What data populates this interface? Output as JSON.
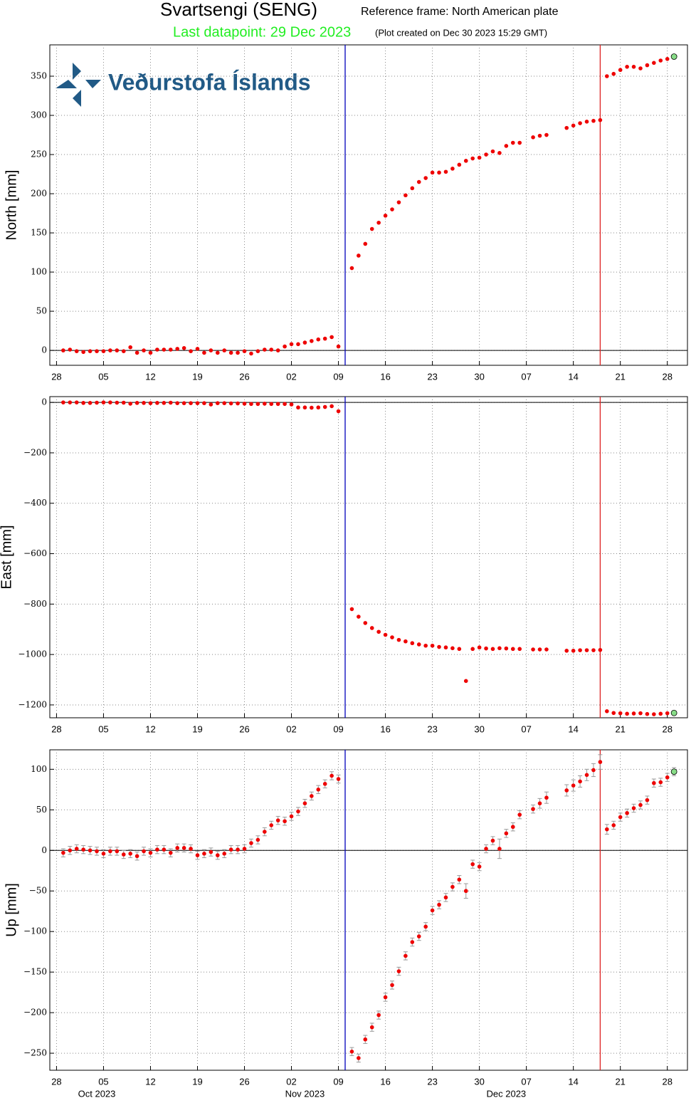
{
  "header": {
    "title": "Svartsengi (SENG)",
    "reference": "Reference frame: North American plate",
    "last_datapoint": "Last datapoint: 29 Dec 2023",
    "created": "(Plot created on Dec 30 2023 15:29 GMT)"
  },
  "logo": "Veðurstofa Íslands",
  "chart_data": {
    "type": "scatter",
    "grid": true,
    "color": "#ee0000",
    "last_color": "#88dd88",
    "error_color": "#999999",
    "xlim": [
      "2023-09-27",
      "2023-12-31"
    ],
    "xticks": [
      {
        "value": "2023-09-28",
        "label": "28"
      },
      {
        "value": "2023-10-05",
        "label": "05"
      },
      {
        "value": "2023-10-12",
        "label": "12"
      },
      {
        "value": "2023-10-19",
        "label": "19"
      },
      {
        "value": "2023-10-26",
        "label": "26"
      },
      {
        "value": "2023-11-02",
        "label": "02"
      },
      {
        "value": "2023-11-09",
        "label": "09"
      },
      {
        "value": "2023-11-16",
        "label": "16"
      },
      {
        "value": "2023-11-23",
        "label": "23"
      },
      {
        "value": "2023-11-30",
        "label": "30"
      },
      {
        "value": "2023-12-07",
        "label": "07"
      },
      {
        "value": "2023-12-14",
        "label": "14"
      },
      {
        "value": "2023-12-21",
        "label": "21"
      },
      {
        "value": "2023-12-28",
        "label": "28"
      }
    ],
    "month_labels": [
      {
        "value": "2023-10-04",
        "label": "Oct 2023"
      },
      {
        "value": "2023-11-04",
        "label": "Nov 2023"
      },
      {
        "value": "2023-12-04",
        "label": "Dec 2023"
      }
    ],
    "events": [
      {
        "x": "2023-11-10",
        "color": "#0000bb"
      },
      {
        "x": "2023-12-18",
        "color": "#dd2222"
      }
    ],
    "x": [
      "2023-09-29",
      "2023-09-30",
      "2023-10-01",
      "2023-10-02",
      "2023-10-03",
      "2023-10-04",
      "2023-10-05",
      "2023-10-06",
      "2023-10-07",
      "2023-10-08",
      "2023-10-09",
      "2023-10-10",
      "2023-10-11",
      "2023-10-12",
      "2023-10-13",
      "2023-10-14",
      "2023-10-15",
      "2023-10-16",
      "2023-10-17",
      "2023-10-18",
      "2023-10-19",
      "2023-10-20",
      "2023-10-21",
      "2023-10-22",
      "2023-10-23",
      "2023-10-24",
      "2023-10-25",
      "2023-10-26",
      "2023-10-27",
      "2023-10-28",
      "2023-10-29",
      "2023-10-30",
      "2023-10-31",
      "2023-11-01",
      "2023-11-02",
      "2023-11-03",
      "2023-11-04",
      "2023-11-05",
      "2023-11-06",
      "2023-11-07",
      "2023-11-08",
      "2023-11-09",
      "2023-11-10",
      "2023-11-11",
      "2023-11-12",
      "2023-11-13",
      "2023-11-14",
      "2023-11-15",
      "2023-11-16",
      "2023-11-17",
      "2023-11-18",
      "2023-11-19",
      "2023-11-20",
      "2023-11-21",
      "2023-11-22",
      "2023-11-23",
      "2023-11-24",
      "2023-11-25",
      "2023-11-26",
      "2023-11-27",
      "2023-11-28",
      "2023-11-29",
      "2023-11-30",
      "2023-12-01",
      "2023-12-02",
      "2023-12-03",
      "2023-12-04",
      "2023-12-05",
      "2023-12-06",
      "2023-12-07",
      "2023-12-08",
      "2023-12-09",
      "2023-12-10",
      "2023-12-11",
      "2023-12-12",
      "2023-12-13",
      "2023-12-14",
      "2023-12-15",
      "2023-12-16",
      "2023-12-17",
      "2023-12-18",
      "2023-12-19",
      "2023-12-20",
      "2023-12-21",
      "2023-12-22",
      "2023-12-23",
      "2023-12-24",
      "2023-12-25",
      "2023-12-26",
      "2023-12-27",
      "2023-12-28",
      "2023-12-29"
    ],
    "panels": [
      {
        "ylabel": "North [mm]",
        "ylim": [
          -19,
          390
        ],
        "yticks": [
          0,
          50,
          100,
          150,
          200,
          250,
          300,
          350
        ],
        "values": [
          0,
          1,
          -1,
          -2,
          -1,
          -1,
          -1,
          0,
          0,
          -1,
          4,
          -3,
          0,
          -3,
          1,
          1,
          1,
          2,
          3,
          -1,
          2,
          -3,
          0,
          -3,
          0,
          -3,
          -3,
          -1,
          -4,
          -1,
          1,
          1,
          0,
          5,
          8,
          8,
          10,
          12,
          14,
          15,
          17,
          5,
          null,
          105,
          121,
          136,
          155,
          163,
          172,
          180,
          189,
          198,
          207,
          215,
          220,
          227,
          227,
          228,
          232,
          237,
          242,
          245,
          246,
          250,
          254,
          252,
          261,
          265,
          265,
          null,
          272,
          274,
          275,
          null,
          null,
          284,
          287,
          290,
          292,
          293,
          294,
          350,
          353,
          358,
          362,
          362,
          360,
          364,
          367,
          370,
          372,
          375
        ]
      },
      {
        "ylabel": "East [mm]",
        "ylim": [
          -1251,
          23
        ],
        "yticks": [
          0,
          {
            "value": -200,
            "label": "−200"
          },
          {
            "value": -400,
            "label": "−400"
          },
          {
            "value": -600,
            "label": "−600"
          },
          {
            "value": -800,
            "label": "−800"
          },
          {
            "value": -1000,
            "label": "−1000"
          },
          {
            "value": -1200,
            "label": "−1200"
          }
        ],
        "values": [
          0,
          0,
          0,
          -2,
          -2,
          -1,
          0,
          0,
          -1,
          -1,
          -5,
          -2,
          -2,
          -3,
          -2,
          -2,
          -1,
          -3,
          -3,
          -3,
          -3,
          -3,
          -8,
          -3,
          -3,
          -4,
          -4,
          -5,
          -6,
          -6,
          -5,
          -6,
          -6,
          -6,
          -8,
          -20,
          -20,
          -21,
          -20,
          -18,
          -15,
          -35,
          null,
          -820,
          -850,
          -875,
          -895,
          -910,
          -922,
          -932,
          -942,
          -948,
          -955,
          -960,
          -965,
          -965,
          -970,
          -972,
          -975,
          -978,
          -1105,
          -978,
          -972,
          -976,
          -978,
          -975,
          -976,
          -978,
          -978,
          null,
          -980,
          -980,
          -980,
          null,
          null,
          -985,
          -985,
          -983,
          -983,
          -983,
          -982,
          -1225,
          -1232,
          -1233,
          -1235,
          -1234,
          -1233,
          -1236,
          -1237,
          -1235,
          -1233,
          -1232
        ]
      },
      {
        "ylabel": "Up [mm]",
        "ylim": [
          -271,
          124
        ],
        "yticks": [
          {
            "value": -250,
            "label": "−250"
          },
          {
            "value": -200,
            "label": "−200"
          },
          {
            "value": -150,
            "label": "−150"
          },
          {
            "value": -100,
            "label": "−100"
          },
          {
            "value": -50,
            "label": "−50"
          },
          0,
          50,
          100
        ],
        "values": [
          -3,
          0,
          2,
          1,
          0,
          -1,
          -4,
          -1,
          -1,
          -5,
          -4,
          -7,
          -1,
          -3,
          1,
          1,
          -3,
          3,
          3,
          2,
          -6,
          -4,
          -2,
          -6,
          -4,
          1,
          1,
          2,
          9,
          13,
          23,
          31,
          37,
          36,
          42,
          48,
          58,
          67,
          75,
          82,
          92,
          88,
          null,
          -248,
          -256,
          -233,
          -218,
          -203,
          -181,
          -166,
          -149,
          -130,
          -113,
          -106,
          -94,
          -74,
          -67,
          -58,
          -45,
          -36,
          -50,
          -17,
          -20,
          2,
          12,
          2,
          21,
          29,
          44,
          null,
          51,
          58,
          65,
          null,
          null,
          74,
          80,
          85,
          93,
          99,
          109,
          26,
          31,
          41,
          46,
          52,
          56,
          62,
          83,
          84,
          90,
          97
        ],
        "errors": [
          5,
          5,
          5,
          5,
          5,
          5,
          5,
          5,
          5,
          5,
          5,
          5,
          5,
          5,
          5,
          5,
          5,
          5,
          5,
          5,
          5,
          5,
          5,
          5,
          5,
          5,
          5,
          5,
          5,
          5,
          5,
          5,
          5,
          5,
          5,
          5,
          5,
          5,
          5,
          5,
          5,
          5,
          null,
          5,
          5,
          5,
          5,
          5,
          5,
          5,
          5,
          5,
          5,
          5,
          5,
          5,
          5,
          5,
          5,
          5,
          9,
          5,
          5,
          5,
          5,
          12,
          5,
          5,
          5,
          null,
          5,
          6,
          7,
          null,
          null,
          7,
          7,
          7,
          7,
          8,
          9,
          6,
          5,
          5,
          5,
          5,
          5,
          5,
          5,
          5,
          5,
          5
        ]
      }
    ]
  }
}
